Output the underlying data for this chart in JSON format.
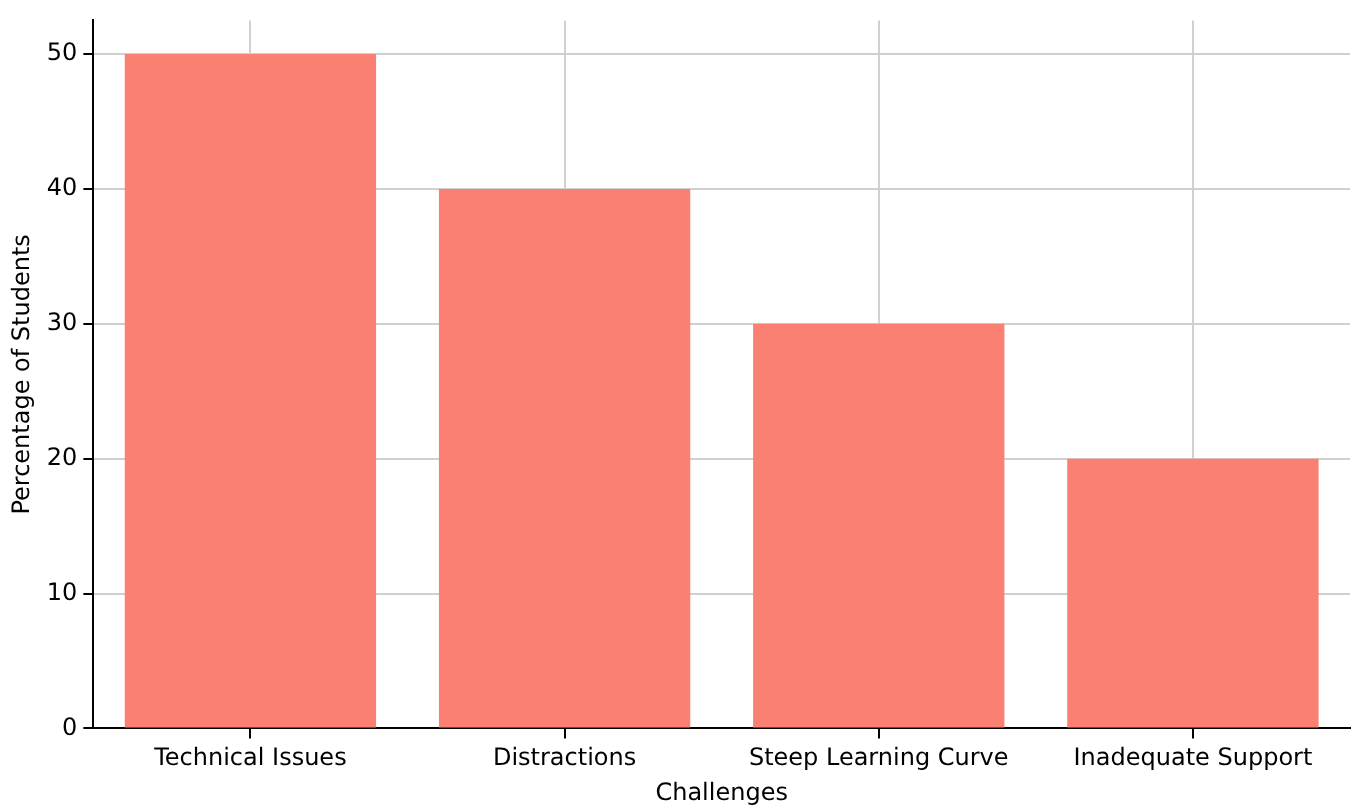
{
  "chart_data": {
    "type": "bar",
    "xlabel": "Challenges",
    "ylabel": "Percentage of Students",
    "categories": [
      "Technical Issues",
      "Distractions",
      "Steep Learning Curve",
      "Inadequate Support"
    ],
    "values": [
      50,
      40,
      30,
      20
    ],
    "color": "#fa8072",
    "ylim": [
      0,
      52.5
    ],
    "yticks": [
      0,
      10,
      20,
      30,
      40,
      50
    ],
    "grid": true
  }
}
